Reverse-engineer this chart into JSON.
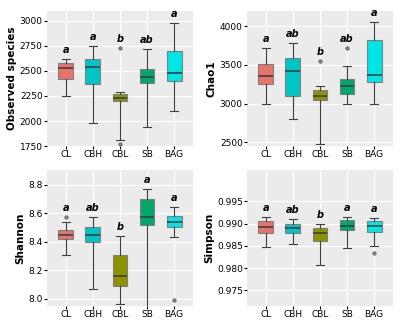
{
  "groups": [
    "CL",
    "CBH",
    "CBL",
    "SB",
    "BAG"
  ],
  "colors": [
    "#E8736A",
    "#00C5C5",
    "#8B9400",
    "#00A86B",
    "#00E5E5"
  ],
  "panel_bg": "#EBEBEB",
  "plots": [
    {
      "title": "Observed species",
      "ylabel": "Observed species",
      "ylim": [
        1750,
        3100
      ],
      "yticks": [
        1750,
        2000,
        2250,
        2500,
        2750,
        3000
      ],
      "letters": [
        "a",
        "a",
        "b",
        "ab",
        "a"
      ],
      "boxes": [
        {
          "q1": 2420,
          "median": 2530,
          "q3": 2580,
          "whislo": 2250,
          "whishi": 2620
        },
        {
          "q1": 2370,
          "median": 2540,
          "q3": 2620,
          "whislo": 1980,
          "whishi": 2750
        },
        {
          "q1": 2200,
          "median": 2230,
          "q3": 2270,
          "whislo": 1810,
          "whishi": 2290,
          "fliers": [
            1770,
            2730
          ]
        },
        {
          "q1": 2380,
          "median": 2440,
          "q3": 2520,
          "whislo": 1940,
          "whishi": 2720
        },
        {
          "q1": 2400,
          "median": 2480,
          "q3": 2700,
          "whislo": 2100,
          "whishi": 2980
        }
      ]
    },
    {
      "title": "Chao1",
      "ylabel": "Chao1",
      "ylim": [
        2450,
        4200
      ],
      "yticks": [
        2500,
        3000,
        3500,
        4000
      ],
      "letters": [
        "a",
        "ab",
        "b",
        "ab",
        "a"
      ],
      "boxes": [
        {
          "q1": 3250,
          "median": 3360,
          "q3": 3510,
          "whislo": 2990,
          "whishi": 3720
        },
        {
          "q1": 3100,
          "median": 3420,
          "q3": 3590,
          "whislo": 2800,
          "whishi": 3780
        },
        {
          "q1": 3050,
          "median": 3100,
          "q3": 3170,
          "whislo": 2480,
          "whishi": 3220,
          "fliers": [
            3550
          ]
        },
        {
          "q1": 3120,
          "median": 3230,
          "q3": 3320,
          "whislo": 3000,
          "whishi": 3490,
          "fliers": [
            3720
          ]
        },
        {
          "q1": 3280,
          "median": 3370,
          "q3": 3820,
          "whislo": 3000,
          "whishi": 4050
        }
      ]
    },
    {
      "title": "Shannon",
      "ylabel": "Shannon",
      "ylim": [
        7.95,
        8.9
      ],
      "yticks": [
        8.0,
        8.2,
        8.4,
        8.6,
        8.8
      ],
      "letters": [
        "a",
        "ab",
        "b",
        "a",
        "a"
      ],
      "boxes": [
        {
          "q1": 8.42,
          "median": 8.45,
          "q3": 8.48,
          "whislo": 8.31,
          "whishi": 8.54,
          "fliers": [
            8.57
          ]
        },
        {
          "q1": 8.4,
          "median": 8.45,
          "q3": 8.5,
          "whislo": 8.07,
          "whishi": 8.57
        },
        {
          "q1": 8.09,
          "median": 8.16,
          "q3": 8.31,
          "whislo": 7.96,
          "whishi": 8.44
        },
        {
          "q1": 8.52,
          "median": 8.57,
          "q3": 8.7,
          "whislo": 7.93,
          "whishi": 8.77
        },
        {
          "q1": 8.5,
          "median": 8.54,
          "q3": 8.58,
          "whislo": 8.43,
          "whishi": 8.64,
          "fliers": [
            7.99
          ]
        }
      ]
    },
    {
      "title": "Simpson",
      "ylabel": "Simpson",
      "ylim": [
        0.9715,
        1.002
      ],
      "yticks": [
        0.975,
        0.98,
        0.985,
        0.99,
        0.995
      ],
      "letters": [
        "a",
        "ab",
        "b",
        "a",
        "a"
      ],
      "boxes": [
        {
          "q1": 0.9878,
          "median": 0.9892,
          "q3": 0.9905,
          "whislo": 0.9848,
          "whishi": 0.9915
        },
        {
          "q1": 0.9878,
          "median": 0.989,
          "q3": 0.99,
          "whislo": 0.9855,
          "whishi": 0.991
        },
        {
          "q1": 0.9862,
          "median": 0.9878,
          "q3": 0.989,
          "whislo": 0.9808,
          "whishi": 0.99
        },
        {
          "q1": 0.9885,
          "median": 0.9895,
          "q3": 0.9908,
          "whislo": 0.9845,
          "whishi": 0.9915
        },
        {
          "q1": 0.9882,
          "median": 0.9895,
          "q3": 0.9905,
          "whislo": 0.985,
          "whishi": 0.9912,
          "fliers": [
            0.9835
          ]
        }
      ]
    }
  ]
}
